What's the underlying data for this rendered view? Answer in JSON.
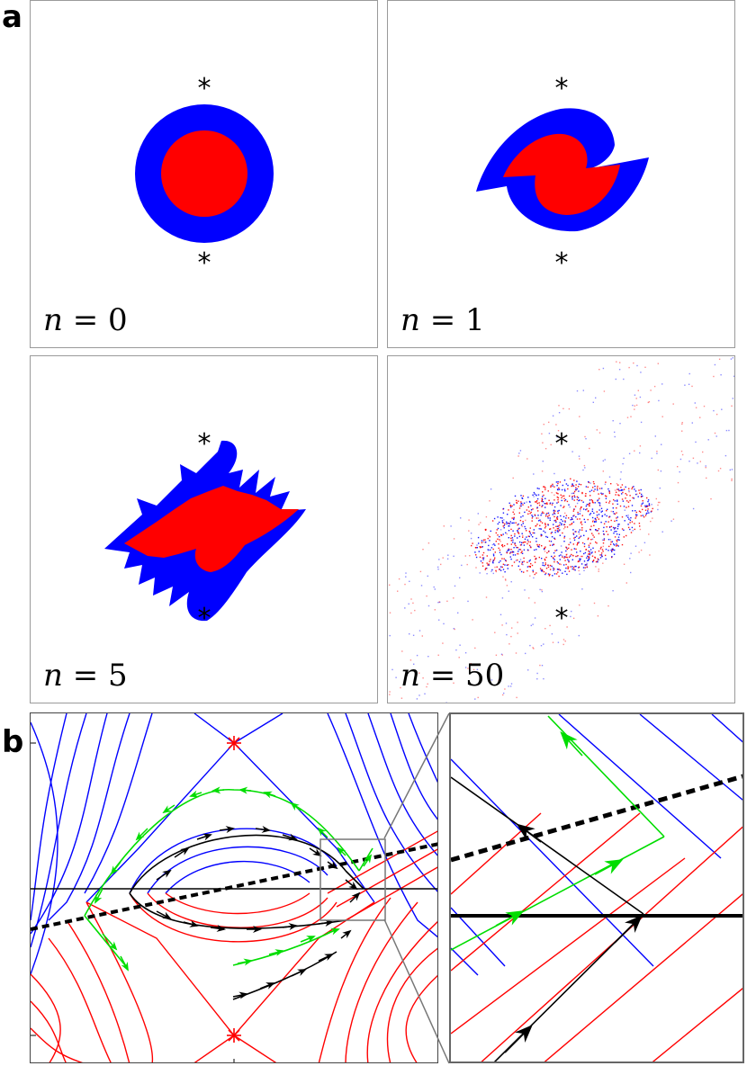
{
  "figure": {
    "panel_a_label": "a",
    "panel_b_label": "b",
    "colors": {
      "outer_region": "#0000ff",
      "inner_region": "#ff0000",
      "stable_manifold": "#0000ff",
      "unstable_manifold": "#ff0000",
      "trajectory_black": "#000000",
      "trajectory_green": "#00dd00",
      "fixed_point": "#ff0000"
    },
    "panels": [
      {
        "n_label": "n",
        "n_value": "0",
        "marker": "*"
      },
      {
        "n_label": "n",
        "n_value": "1",
        "marker": "*"
      },
      {
        "n_label": "n",
        "n_value": "5",
        "marker": "*"
      },
      {
        "n_label": "n",
        "n_value": "50",
        "marker": "*"
      }
    ]
  }
}
